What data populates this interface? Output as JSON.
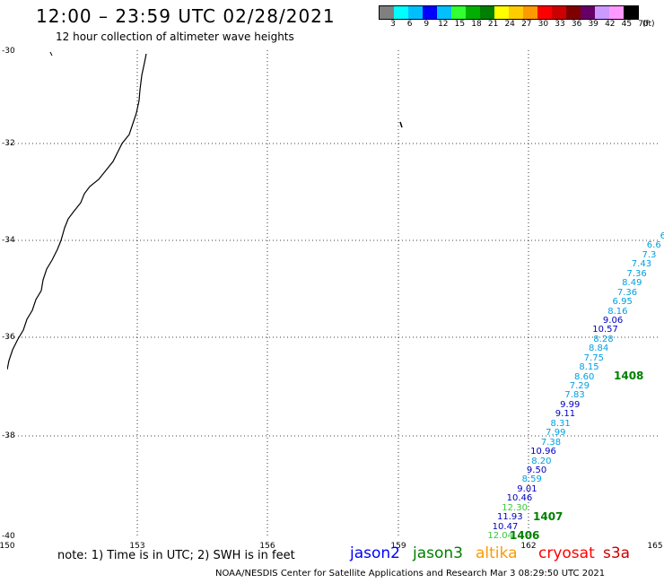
{
  "title": "12:00 – 23:59 UTC 02/28/2021",
  "subtitle": "12 hour collection of altimeter wave heights",
  "colorbar": {
    "colors": [
      "#808080",
      "#00ffff",
      "#00bfff",
      "#0000ff",
      "#00c0ff",
      "#33ff33",
      "#00b000",
      "#008000",
      "#ffff00",
      "#ffcc00",
      "#ff9900",
      "#ff0000",
      "#cc0000",
      "#800000",
      "#660066",
      "#cc99ff",
      "#ff99ff",
      "#000000"
    ],
    "ticks": [
      "3",
      "6",
      "9",
      "12",
      "15",
      "18",
      "21",
      "24",
      "27",
      "30",
      "33",
      "36",
      "39",
      "42",
      "45",
      "70"
    ],
    "unit": "(ft)"
  },
  "lat_labels": [
    "-30",
    "-32",
    "-34",
    "-36",
    "-38",
    "-40"
  ],
  "lon_labels": [
    "150",
    "153",
    "156",
    "159",
    "162",
    "165"
  ],
  "swh_points": [
    {
      "v": "6",
      "c": "#00a0e0"
    },
    {
      "v": "6.6",
      "c": "#00a0e0"
    },
    {
      "v": "7.3",
      "c": "#00a0e0"
    },
    {
      "v": "7.43",
      "c": "#00a0e0"
    },
    {
      "v": "7.36",
      "c": "#00a0e0"
    },
    {
      "v": "8.49",
      "c": "#00a0e0"
    },
    {
      "v": "7.36",
      "c": "#00a0e0"
    },
    {
      "v": "6.95",
      "c": "#00a0e0"
    },
    {
      "v": "8.16",
      "c": "#00a0e0"
    },
    {
      "v": "9.06",
      "c": "#0000c0"
    },
    {
      "v": "10.57",
      "c": "#0000c0"
    },
    {
      "v": "8.28",
      "c": "#00a0e0"
    },
    {
      "v": "8.84",
      "c": "#00a0e0"
    },
    {
      "v": "7.75",
      "c": "#00a0e0"
    },
    {
      "v": "8.15",
      "c": "#00a0e0"
    },
    {
      "v": "8.60",
      "c": "#00a0e0"
    },
    {
      "v": "7.29",
      "c": "#00a0e0"
    },
    {
      "v": "7.83",
      "c": "#00a0e0"
    },
    {
      "v": "9.99",
      "c": "#0000c0"
    },
    {
      "v": "9.11",
      "c": "#0000c0"
    },
    {
      "v": "8.31",
      "c": "#00a0e0"
    },
    {
      "v": "7.99",
      "c": "#00a0e0"
    },
    {
      "v": "7.38",
      "c": "#00a0e0"
    },
    {
      "v": "10.96",
      "c": "#0000c0"
    },
    {
      "v": "8.20",
      "c": "#00a0e0"
    },
    {
      "v": "9.50",
      "c": "#0000c0"
    },
    {
      "v": "8.59",
      "c": "#00a0e0"
    },
    {
      "v": "9.01",
      "c": "#0000c0"
    },
    {
      "v": "10.46",
      "c": "#0000c0"
    },
    {
      "v": "12.30",
      "c": "#33cc33"
    },
    {
      "v": "11.93",
      "c": "#0000c0"
    },
    {
      "v": "10.47",
      "c": "#0000c0"
    },
    {
      "v": "12.04",
      "c": "#33cc33"
    }
  ],
  "time_tags": [
    "1408",
    "1407",
    "1406"
  ],
  "note": "note: 1) Time is in UTC; 2) SWH is in feet",
  "satellites": [
    {
      "name": "jason2",
      "color": "#0000ff"
    },
    {
      "name": "jason3",
      "color": "#008000"
    },
    {
      "name": "altika",
      "color": "#ff9900"
    },
    {
      "name": "cryosat",
      "color": "#ff0000"
    },
    {
      "name": "s3a",
      "color": "#cc0000"
    }
  ],
  "footer": "NOAA/NESDIS Center for Satellite Applications and Research   Mar  3 08:29:50 UTC 2021"
}
